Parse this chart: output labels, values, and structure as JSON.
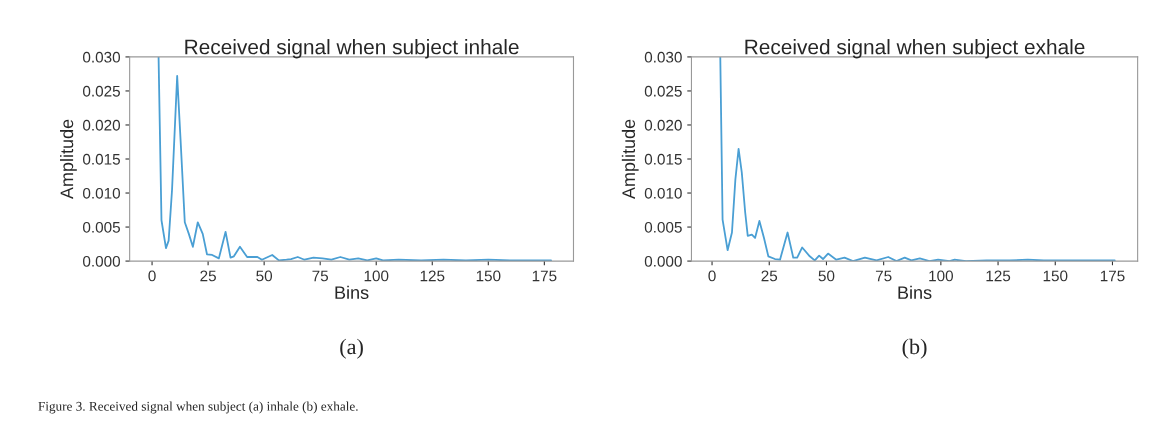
{
  "chart_data": [
    {
      "type": "line",
      "title": "Received signal when subject inhale",
      "xlabel": "Bins",
      "ylabel": "Amplitude",
      "annotations": [
        "(a)",
        "Figure 3. Received signal when subject (a) inhale (b) exhale."
      ],
      "x": [
        2.9,
        4.2,
        6.2,
        7.4,
        8.9,
        11.2,
        12.7,
        14.6,
        16.4,
        18.2,
        20.4,
        22.6,
        24.5,
        26.8,
        29.8,
        32.8,
        35.0,
        36.5,
        39.2,
        42.4,
        47,
        49,
        53.6,
        56.6,
        60,
        62,
        65,
        68,
        72,
        76,
        80,
        84,
        88,
        92,
        96,
        100,
        103,
        110,
        120,
        130,
        140,
        150,
        160,
        170,
        178
      ],
      "series": [
        {
          "color": "#4a9fd4",
          "values": [
            0.03,
            0.006,
            0.0019,
            0.003,
            0.0104,
            0.0272,
            0.0179,
            0.0057,
            0.004,
            0.0021,
            0.0057,
            0.004,
            0.001,
            0.0009,
            0.0004,
            0.0043,
            0.0005,
            0.0007,
            0.0021,
            0.0006,
            0.0006,
            0.0002,
            0.0009,
            0.0001,
            0.0002,
            0.0003,
            0.0006,
            0.0002,
            0.0005,
            0.0004,
            0.0002,
            0.0006,
            0.0002,
            0.0004,
            0.0001,
            0.0004,
            0.0001,
            0.0002,
            0.0001,
            0.0002,
            0.0001,
            0.0002,
            0.0001,
            0.0001,
            0.0001
          ]
        }
      ],
      "xlim": [
        -10,
        188
      ],
      "xticks": [
        0,
        25,
        50,
        75,
        100,
        125,
        150,
        175
      ],
      "ylim": [
        0,
        0.03
      ],
      "yticks": [
        {
          "value": 0,
          "label": "0.000"
        },
        {
          "value": 0.005,
          "label": "0.005"
        },
        {
          "value": 0.01,
          "label": "0.010"
        },
        {
          "value": 0.015,
          "label": "0.015"
        },
        {
          "value": 0.02,
          "label": "0.020"
        },
        {
          "value": 0.025,
          "label": "0.025"
        },
        {
          "value": 0.03,
          "label": "0.030"
        }
      ],
      "grid": false,
      "legend": false
    },
    {
      "type": "line",
      "title": "Received signal when subject exhale",
      "xlabel": "Bins",
      "ylabel": "Amplitude",
      "annotations": [
        "(b)"
      ],
      "x": [
        3.6,
        4.6,
        6.8,
        8.7,
        10.2,
        11.6,
        13.0,
        14.5,
        15.6,
        17.4,
        18.8,
        20.7,
        22.7,
        24.6,
        27.5,
        29.7,
        33.0,
        35.5,
        37.2,
        39.4,
        42.7,
        44.9,
        46.8,
        48.5,
        50.7,
        54.3,
        57.9,
        61.6,
        66.8,
        71.9,
        77,
        80.6,
        84.2,
        87.1,
        90.8,
        95,
        98.8,
        103.8,
        106,
        111,
        120,
        130,
        138,
        145,
        155,
        165,
        176
      ],
      "series": [
        {
          "color": "#4a9fd4",
          "values": [
            0.03,
            0.0061,
            0.0016,
            0.0042,
            0.012,
            0.0165,
            0.013,
            0.0071,
            0.0037,
            0.0039,
            0.0034,
            0.0059,
            0.0034,
            0.0007,
            0.0003,
            0.0002,
            0.0042,
            0.0005,
            0.0005,
            0.002,
            0.0007,
            0.0001,
            0.0008,
            0.0003,
            0.0011,
            0.0002,
            0.0005,
            0.0,
            0.0005,
            0.0001,
            0.0006,
            0.0,
            0.0005,
            0.0001,
            0.0004,
            0.0,
            0.0002,
            0.0,
            0.0002,
            0.0,
            0.0001,
            0.0001,
            0.0002,
            0.0001,
            0.0001,
            0.0001,
            0.0001
          ]
        }
      ],
      "xlim": [
        -9,
        186
      ],
      "xticks": [
        0,
        25,
        50,
        75,
        100,
        125,
        150,
        175
      ],
      "ylim": [
        0,
        0.03
      ],
      "yticks": [
        {
          "value": 0,
          "label": "0.000"
        },
        {
          "value": 0.005,
          "label": "0.005"
        },
        {
          "value": 0.01,
          "label": "0.010"
        },
        {
          "value": 0.015,
          "label": "0.015"
        },
        {
          "value": 0.02,
          "label": "0.020"
        },
        {
          "value": 0.025,
          "label": "0.025"
        },
        {
          "value": 0.03,
          "label": "0.030"
        }
      ],
      "grid": false,
      "legend": false
    }
  ]
}
